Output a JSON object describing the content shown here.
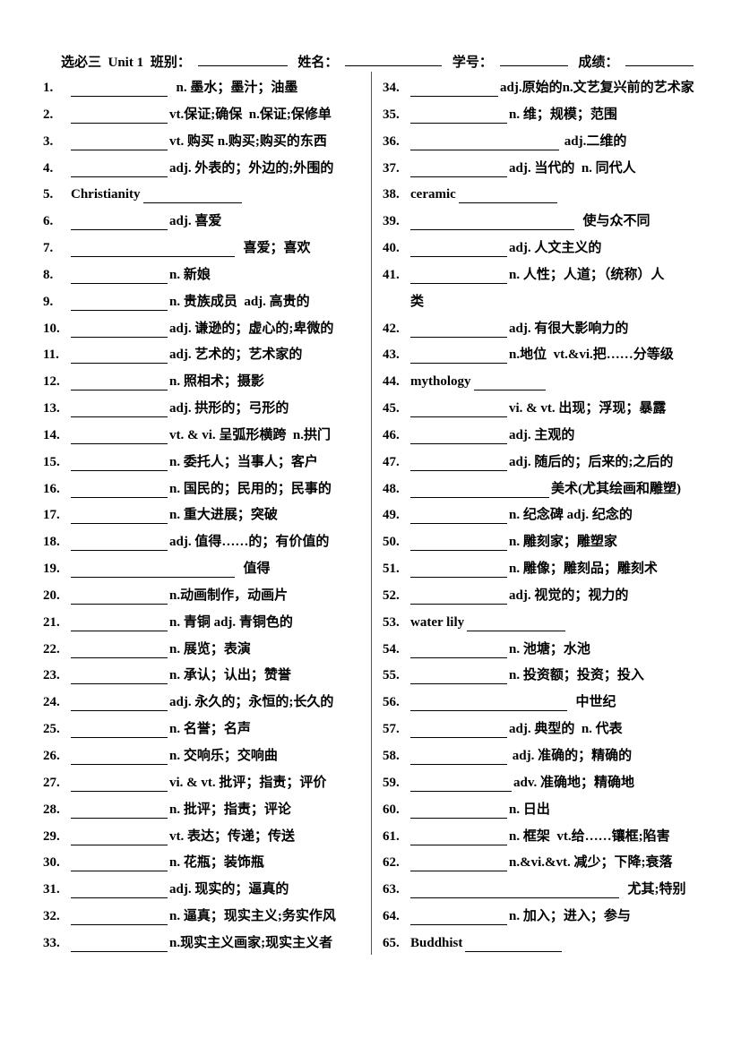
{
  "header": {
    "prefix": "选必三  Unit 1",
    "class_label": "班别：",
    "name_label": "姓名：",
    "id_label": "学号：",
    "score_label": "成绩："
  },
  "left_items": [
    {
      "num": "1.",
      "def": "  n. 墨水；墨汁；油墨"
    },
    {
      "num": "2.",
      "def": "vt.保证;确保  n.保证;保修单"
    },
    {
      "num": "3.",
      "def": "vt. 购买 n.购买;购买的东西"
    },
    {
      "num": "4.",
      "def": "adj. 外表的；外边的;外围的"
    },
    {
      "num": "5.",
      "word": "Christianity",
      "def": ""
    },
    {
      "num": "6.",
      "def": "adj. 喜爱"
    },
    {
      "num": "7.",
      "def": "  喜爱；喜欢"
    },
    {
      "num": "8.",
      "def": "n. 新娘"
    },
    {
      "num": "9.",
      "def": "n. 贵族成员  adj. 高贵的"
    },
    {
      "num": "10.",
      "def": "adj. 谦逊的；虚心的;卑微的"
    },
    {
      "num": "11.",
      "def": "adj. 艺术的；艺术家的"
    },
    {
      "num": "12.",
      "def": "n. 照相术；摄影"
    },
    {
      "num": "13.",
      "def": "adj. 拱形的；弓形的"
    },
    {
      "num": "14.",
      "def": "vt. & vi. 呈弧形横跨  n.拱门"
    },
    {
      "num": "15.",
      "def": "n. 委托人；当事人；客户"
    },
    {
      "num": "16.",
      "def": "n. 国民的；民用的；民事的"
    },
    {
      "num": "17.",
      "def": "n. 重大进展；突破"
    },
    {
      "num": "18.",
      "def": "adj. 值得……的；有价值的"
    },
    {
      "num": "19.",
      "def": "  值得"
    },
    {
      "num": "20.",
      "def": "n.动画制作，动画片"
    },
    {
      "num": "21.",
      "def": "n. 青铜 adj. 青铜色的"
    },
    {
      "num": "22.",
      "def": "n. 展览；表演"
    },
    {
      "num": "23.",
      "def": "n. 承认；认出；赞誉"
    },
    {
      "num": "24.",
      "def": "adj. 永久的；永恒的;长久的"
    },
    {
      "num": "25.",
      "def": "n. 名誉；名声"
    },
    {
      "num": "26.",
      "def": "n. 交响乐；交响曲"
    },
    {
      "num": "27.",
      "def": "vi. & vt. 批评；指责；评价"
    },
    {
      "num": "28.",
      "def": "n. 批评；指责；评论"
    },
    {
      "num": "29.",
      "def": "vt. 表达；传递；传送"
    },
    {
      "num": "30.",
      "def": "n. 花瓶；装饰瓶"
    },
    {
      "num": "31.",
      "def": "adj. 现实的；逼真的"
    },
    {
      "num": "32.",
      "def": "n. 逼真；现实主义;务实作风"
    },
    {
      "num": "33.",
      "def": "n.现实主义画家;现实主义者"
    }
  ],
  "right_items": [
    {
      "num": "34.",
      "def": "adj.原始的n.文艺复兴前的艺术家"
    },
    {
      "num": "35.",
      "def": "n. 维；规模；范围"
    },
    {
      "num": "36.",
      "def": " adj.二维的"
    },
    {
      "num": "37.",
      "def": "adj. 当代的  n. 同代人"
    },
    {
      "num": "38.",
      "word": "ceramic",
      "def": ""
    },
    {
      "num": "39.",
      "def": "  使与众不同"
    },
    {
      "num": "40.",
      "def": "adj. 人文主义的"
    },
    {
      "num": "41.",
      "def": "n. 人性；人道；（统称）人",
      "cont": "类"
    },
    {
      "num": "42.",
      "def": "adj. 有很大影响力的"
    },
    {
      "num": "43.",
      "def": "n.地位  vt.&vi.把……分等级"
    },
    {
      "num": "44.",
      "word": "mythology",
      "def": ""
    },
    {
      "num": "45.",
      "def": "vi. & vt. 出现；浮现；暴露"
    },
    {
      "num": "46.",
      "def": "adj. 主观的"
    },
    {
      "num": "47.",
      "def": "adj. 随后的；后来的;之后的"
    },
    {
      "num": "48.",
      "def": "美术(尤其绘画和雕塑)"
    },
    {
      "num": "49.",
      "def": "n. 纪念碑 adj. 纪念的"
    },
    {
      "num": "50.",
      "def": "n. 雕刻家；雕塑家"
    },
    {
      "num": "51.",
      "def": "n. 雕像；雕刻品；雕刻术"
    },
    {
      "num": "52.",
      "def": "adj. 视觉的；视力的"
    },
    {
      "num": "53.",
      "word": "water lily",
      "def": ""
    },
    {
      "num": "54.",
      "def": "n. 池塘；水池"
    },
    {
      "num": "55.",
      "def": "n. 投资额；投资；投入"
    },
    {
      "num": "56.",
      "def": "  中世纪"
    },
    {
      "num": "57.",
      "def": "adj. 典型的  n. 代表"
    },
    {
      "num": "58.",
      "def": " adj. 准确的；精确的"
    },
    {
      "num": "59.",
      "def": "adv. 准确地；精确地"
    },
    {
      "num": "60.",
      "def": "n. 日出"
    },
    {
      "num": "61.",
      "def": "n. 框架  vt.给……镶框;陷害"
    },
    {
      "num": "62.",
      "def": "n.&vi.&vt. 减少；下降;衰落"
    },
    {
      "num": "63.",
      "def": "  尤其;特别"
    },
    {
      "num": "64.",
      "def": "n. 加入；进入；参与"
    },
    {
      "num": "65.",
      "word": "Buddhist",
      "def": ""
    }
  ]
}
